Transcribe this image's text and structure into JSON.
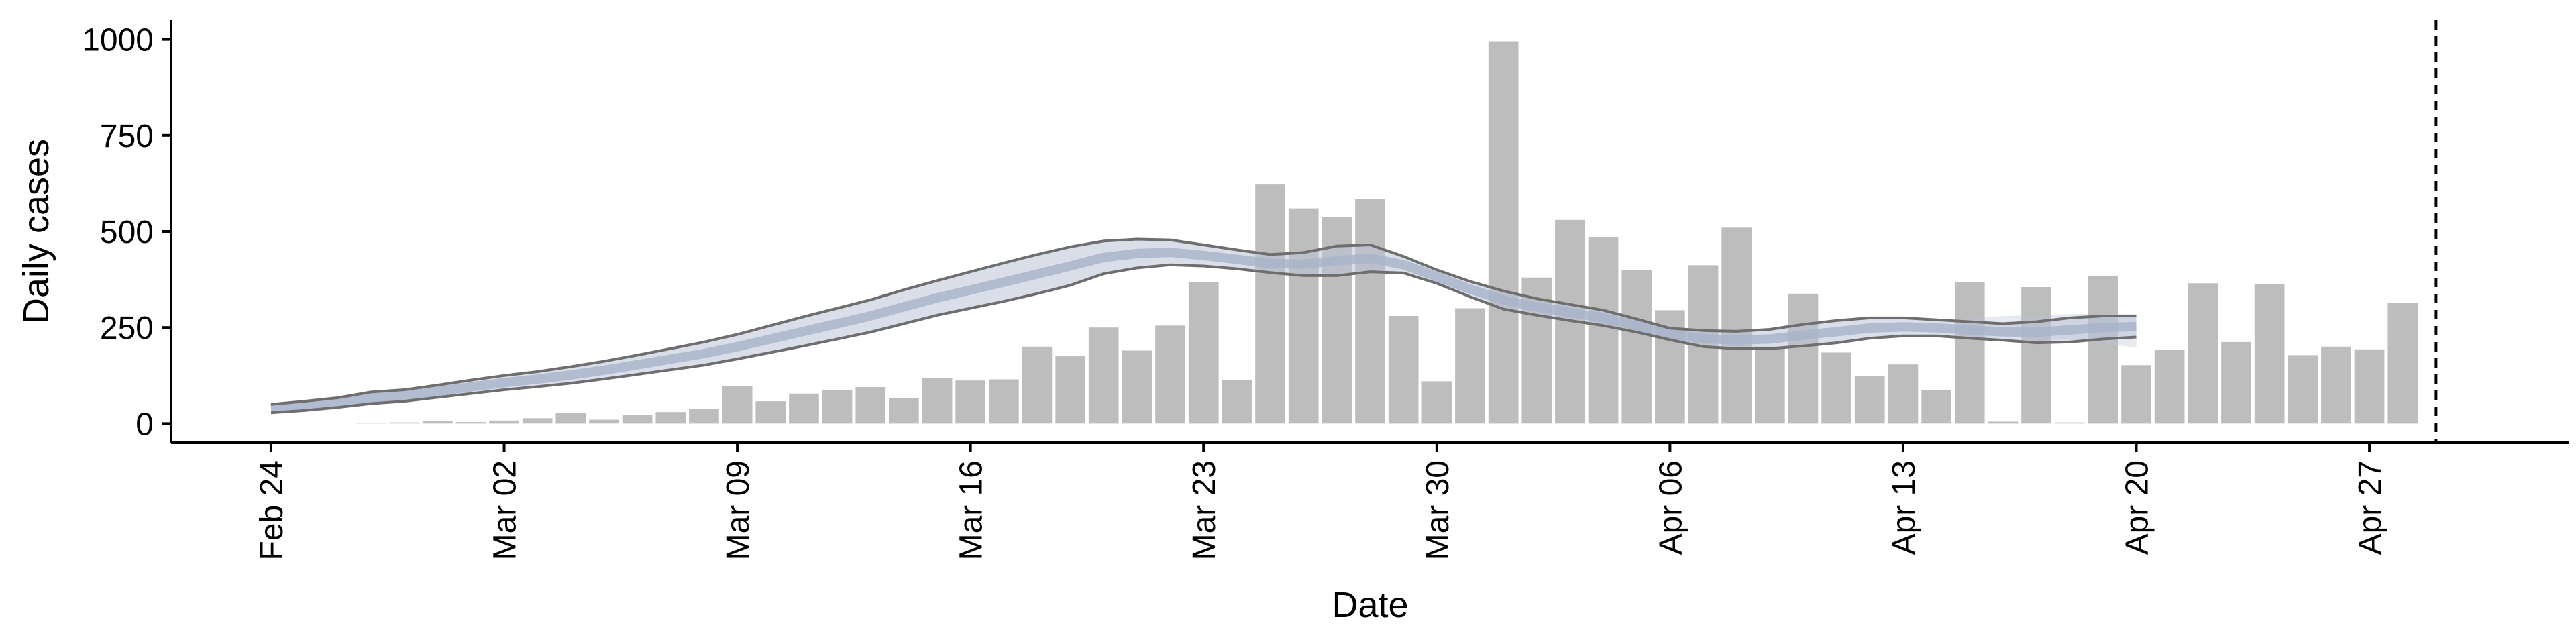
{
  "chart_data": {
    "type": "bar",
    "xlabel": "Date",
    "ylabel": "Daily cases",
    "ylim": [
      -50,
      1050
    ],
    "y_ticks": [
      0,
      250,
      500,
      750,
      1000
    ],
    "y_tick_labels": [
      "0",
      "250",
      "500",
      "750",
      "1000"
    ],
    "x_tick_dates": [
      "2020-02-24",
      "2020-03-02",
      "2020-03-09",
      "2020-03-16",
      "2020-03-23",
      "2020-03-30",
      "2020-04-06",
      "2020-04-13",
      "2020-04-20",
      "2020-04-27"
    ],
    "x_tick_labels": [
      "Feb 24",
      "Mar 02",
      "Mar 09",
      "Mar 16",
      "Mar 23",
      "Mar 30",
      "Apr 06",
      "Apr 13",
      "Apr 20",
      "Apr 27"
    ],
    "x_range": [
      "2020-02-21",
      "2020-05-03"
    ],
    "grid": false,
    "vline_date": "2020-04-29",
    "colors": {
      "bars": "#bdbdbd",
      "band_outline": "#6e6e6e",
      "band_fill": "#b9c2d6",
      "median": "#a7b3cb",
      "vline": "#000000"
    },
    "bars": {
      "dates": [
        "2020-02-27",
        "2020-02-28",
        "2020-02-29",
        "2020-03-01",
        "2020-03-02",
        "2020-03-03",
        "2020-03-04",
        "2020-03-05",
        "2020-03-06",
        "2020-03-07",
        "2020-03-08",
        "2020-03-09",
        "2020-03-10",
        "2020-03-11",
        "2020-03-12",
        "2020-03-13",
        "2020-03-14",
        "2020-03-15",
        "2020-03-16",
        "2020-03-17",
        "2020-03-18",
        "2020-03-19",
        "2020-03-20",
        "2020-03-21",
        "2020-03-22",
        "2020-03-23",
        "2020-03-24",
        "2020-03-25",
        "2020-03-26",
        "2020-03-27",
        "2020-03-28",
        "2020-03-29",
        "2020-03-30",
        "2020-03-31",
        "2020-04-01",
        "2020-04-02",
        "2020-04-03",
        "2020-04-04",
        "2020-04-05",
        "2020-04-06",
        "2020-04-07",
        "2020-04-08",
        "2020-04-09",
        "2020-04-10",
        "2020-04-11",
        "2020-04-12",
        "2020-04-13",
        "2020-04-14",
        "2020-04-15",
        "2020-04-16",
        "2020-04-17",
        "2020-04-18",
        "2020-04-19",
        "2020-04-20",
        "2020-04-21",
        "2020-04-22",
        "2020-04-23",
        "2020-04-24",
        "2020-04-25",
        "2020-04-26",
        "2020-04-27",
        "2020-04-28",
        "2020-04-29"
      ],
      "values": [
        2,
        3,
        6,
        4,
        8,
        14,
        27,
        10,
        22,
        30,
        38,
        97,
        58,
        78,
        88,
        95,
        66,
        118,
        112,
        115,
        200,
        175,
        250,
        190,
        255,
        368,
        113,
        622,
        560,
        538,
        585,
        280,
        110,
        300,
        995,
        380,
        530,
        485,
        400,
        295,
        412,
        510,
        200,
        338,
        185,
        123,
        154,
        87,
        368,
        5,
        355,
        3,
        385,
        152,
        192,
        365,
        212,
        362,
        178,
        200,
        193,
        315,
        0
      ]
    },
    "band": {
      "dates": [
        "2020-02-24",
        "2020-02-25",
        "2020-02-26",
        "2020-02-27",
        "2020-02-28",
        "2020-02-29",
        "2020-03-01",
        "2020-03-02",
        "2020-03-03",
        "2020-03-04",
        "2020-03-05",
        "2020-03-06",
        "2020-03-07",
        "2020-03-08",
        "2020-03-09",
        "2020-03-10",
        "2020-03-11",
        "2020-03-12",
        "2020-03-13",
        "2020-03-14",
        "2020-03-15",
        "2020-03-16",
        "2020-03-17",
        "2020-03-18",
        "2020-03-19",
        "2020-03-20",
        "2020-03-21",
        "2020-03-22",
        "2020-03-23",
        "2020-03-24",
        "2020-03-25",
        "2020-03-26",
        "2020-03-27",
        "2020-03-28",
        "2020-03-29",
        "2020-03-30",
        "2020-03-31",
        "2020-04-01",
        "2020-04-02",
        "2020-04-03",
        "2020-04-04",
        "2020-04-05",
        "2020-04-06",
        "2020-04-07",
        "2020-04-08",
        "2020-04-09",
        "2020-04-10",
        "2020-04-11",
        "2020-04-12",
        "2020-04-13",
        "2020-04-14",
        "2020-04-15",
        "2020-04-16",
        "2020-04-17",
        "2020-04-18",
        "2020-04-19",
        "2020-04-20"
      ],
      "upper": [
        50,
        58,
        67,
        82,
        88,
        100,
        113,
        125,
        135,
        148,
        162,
        178,
        195,
        212,
        232,
        255,
        278,
        300,
        322,
        348,
        372,
        395,
        418,
        440,
        460,
        475,
        480,
        478,
        465,
        452,
        440,
        445,
        462,
        465,
        435,
        400,
        370,
        345,
        325,
        310,
        295,
        272,
        248,
        242,
        240,
        245,
        258,
        268,
        275,
        275,
        270,
        265,
        260,
        265,
        275,
        280,
        280
      ],
      "lower": [
        28,
        34,
        42,
        52,
        58,
        68,
        78,
        88,
        96,
        105,
        116,
        128,
        140,
        152,
        168,
        185,
        202,
        220,
        238,
        260,
        282,
        300,
        318,
        338,
        360,
        390,
        405,
        413,
        410,
        403,
        393,
        385,
        385,
        395,
        392,
        365,
        330,
        298,
        282,
        268,
        255,
        238,
        218,
        200,
        195,
        195,
        202,
        210,
        222,
        228,
        228,
        222,
        217,
        210,
        212,
        220,
        225
      ]
    },
    "fan": {
      "dates": [
        "2020-04-15",
        "2020-04-16",
        "2020-04-17",
        "2020-04-18",
        "2020-04-19",
        "2020-04-20"
      ],
      "upper": [
        275,
        280,
        282,
        285,
        285,
        285
      ],
      "lower": [
        225,
        228,
        225,
        218,
        208,
        198
      ]
    }
  }
}
